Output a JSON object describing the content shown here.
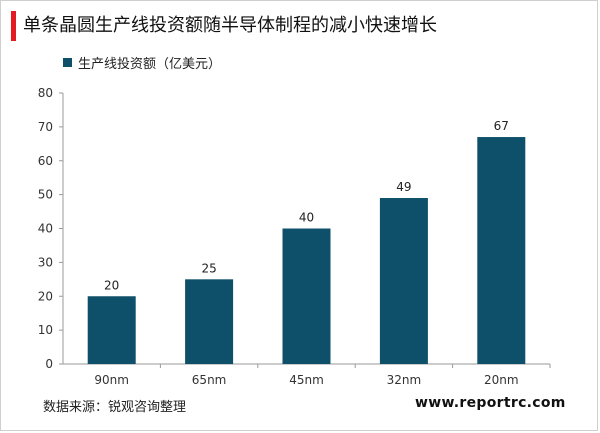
{
  "title": "单条晶圆生产线投资额随半导体制程的减小快速增长",
  "legend_label": "生产线投资额（亿美元）",
  "source": "数据来源：锐观咨询整理",
  "watermark": "www.reportrc.com",
  "colors": {
    "bar": "#0e5069",
    "accent": "#e31b23"
  },
  "chart_data": {
    "type": "bar",
    "categories": [
      "90nm",
      "65nm",
      "45nm",
      "32nm",
      "20nm"
    ],
    "series": [
      {
        "name": "生产线投资额（亿美元）",
        "values": [
          20,
          25,
          40,
          49,
          67
        ]
      }
    ],
    "ylim": [
      0,
      80
    ],
    "yticks": [
      0,
      10,
      20,
      30,
      40,
      50,
      60,
      70,
      80
    ],
    "grid": false,
    "legend": "top-left"
  }
}
